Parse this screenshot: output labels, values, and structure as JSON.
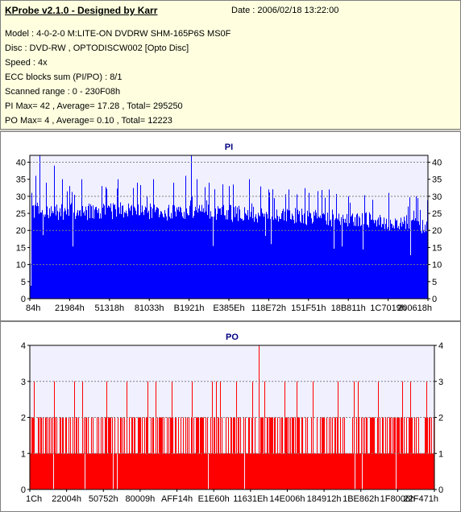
{
  "info": {
    "title": "KProbe v2.1.0 - Designed by Karr",
    "date": "Date : 2006/02/18 13:22:00",
    "lines": [
      "Model : 4-0-2-0 M:LITE-ON DVDRW SHM-165P6S MS0F",
      "Disc : DVD-RW , OPTODISCW002 [Opto Disc]",
      "Speed : 4x",
      "ECC blocks sum (PI/PO) : 8/1",
      "Scanned range : 0 - 230F08h",
      "PI Max= 42 , Average= 17.28 , Total= 295250",
      "PO Max= 4 , Average= 0.10 , Total= 12223"
    ]
  },
  "colors": {
    "pi": "#0000ff",
    "po": "#ff0000",
    "plot_bg": "#f0f0ff",
    "grid": "#808080",
    "title": "#000080"
  },
  "chart_data": [
    {
      "type": "bar",
      "title": "PI",
      "ylim": [
        0,
        42
      ],
      "yticks": [
        0,
        5,
        10,
        15,
        20,
        25,
        30,
        35,
        40
      ],
      "gridlines": [
        10,
        20,
        30,
        40
      ],
      "xticks": [
        "84h",
        "21984h",
        "51318h",
        "81033h",
        "B1921h",
        "E385Eh",
        "118E72h",
        "151F51h",
        "18B811h",
        "1C7019h",
        "200618h"
      ],
      "series": [
        {
          "baseline_profile": [
            {
              "x": 0,
              "y": 26
            },
            {
              "x": 0.1,
              "y": 26
            },
            {
              "x": 0.3,
              "y": 26
            },
            {
              "x": 0.5,
              "y": 25.5
            },
            {
              "x": 0.7,
              "y": 24.5
            },
            {
              "x": 0.85,
              "y": 23.5
            },
            {
              "x": 1,
              "y": 22
            }
          ],
          "peaks": [
            {
              "x": 0.005,
              "y": 31
            },
            {
              "x": 0.015,
              "y": 36
            },
            {
              "x": 0.025,
              "y": 42
            },
            {
              "x": 0.04,
              "y": 34
            },
            {
              "x": 0.06,
              "y": 39
            },
            {
              "x": 0.08,
              "y": 35
            },
            {
              "x": 0.1,
              "y": 33
            },
            {
              "x": 0.13,
              "y": 35
            },
            {
              "x": 0.18,
              "y": 33
            },
            {
              "x": 0.22,
              "y": 35
            },
            {
              "x": 0.27,
              "y": 34
            },
            {
              "x": 0.31,
              "y": 35
            },
            {
              "x": 0.36,
              "y": 34
            },
            {
              "x": 0.39,
              "y": 36
            },
            {
              "x": 0.405,
              "y": 42
            },
            {
              "x": 0.42,
              "y": 35
            },
            {
              "x": 0.45,
              "y": 34
            },
            {
              "x": 0.5,
              "y": 33
            },
            {
              "x": 0.55,
              "y": 35
            },
            {
              "x": 0.6,
              "y": 32
            },
            {
              "x": 0.65,
              "y": 32
            },
            {
              "x": 0.7,
              "y": 31
            },
            {
              "x": 0.75,
              "y": 32
            },
            {
              "x": 0.8,
              "y": 30
            },
            {
              "x": 0.86,
              "y": 29
            },
            {
              "x": 0.9,
              "y": 31
            },
            {
              "x": 0.95,
              "y": 27
            },
            {
              "x": 0.98,
              "y": 26
            }
          ]
        }
      ]
    },
    {
      "type": "bar",
      "title": "PO",
      "ylim": [
        0,
        4
      ],
      "yticks": [
        0,
        1,
        2,
        3,
        4
      ],
      "gridlines": [
        1,
        2,
        3,
        4
      ],
      "xticks": [
        "1Ch",
        "22004h",
        "50752h",
        "80009h",
        "AFF14h",
        "E1E60h",
        "11631Eh",
        "14E006h",
        "184912h",
        "1BE862h",
        "1F8006h",
        "22F471h"
      ],
      "series": [
        {
          "base_value": 1,
          "frequent_value": 2,
          "spike_value": 3,
          "max_value": 4,
          "max_at": [
            0.566
          ],
          "spikes_at": [
            0.01,
            0.06,
            0.11,
            0.13,
            0.19,
            0.24,
            0.29,
            0.31,
            0.35,
            0.4,
            0.45,
            0.46,
            0.47,
            0.51,
            0.55,
            0.58,
            0.63,
            0.66,
            0.7,
            0.76,
            0.8,
            0.81,
            0.86,
            0.92,
            0.94,
            0.98
          ]
        }
      ]
    }
  ]
}
